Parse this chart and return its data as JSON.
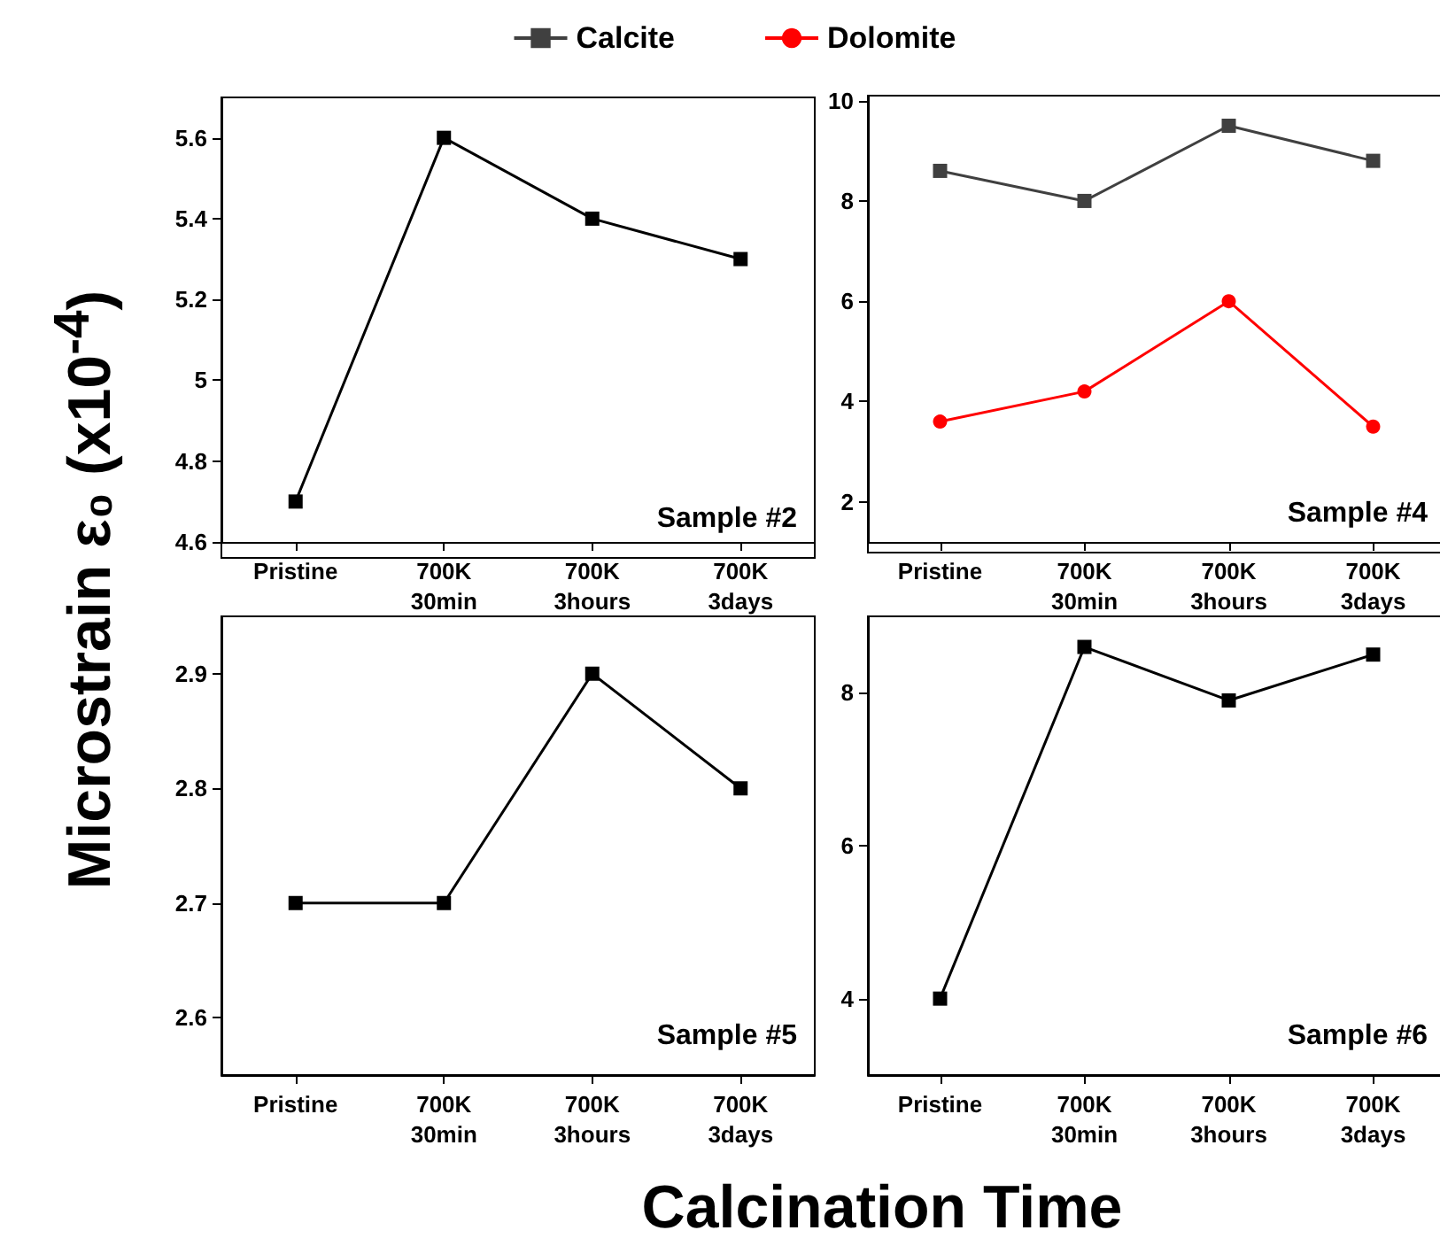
{
  "chart_data": [
    {
      "type": "line",
      "ylabel": "Microstrain ε₀ (x10$^{-4}$)",
      "categories": [
        "Pristine",
        "700K\n30min",
        "700K\n3hours",
        "700K\n3days"
      ],
      "series": [
        {
          "color": "#000000",
          "values": [
            4.7,
            5.6,
            5.4,
            5.3
          ]
        }
      ],
      "ylim": [
        4.6,
        5.7
      ],
      "yticks": [
        4.6,
        4.8,
        5.0,
        5.2,
        5.4,
        5.6
      ],
      "marker": "square",
      "grid": false,
      "annotations": [
        "Sample #2"
      ]
    },
    {
      "type": "line",
      "categories": [
        "Pristine",
        "700K\n30min",
        "700K\n3hours",
        "700K\n3days"
      ],
      "series": [
        {
          "name": "Calcite",
          "color": "#404040",
          "marker": "square",
          "values": [
            8.6,
            8.0,
            9.5,
            8.8
          ]
        },
        {
          "name": "Dolomite",
          "color": "#ff0000",
          "marker": "circle",
          "values": [
            3.6,
            4.2,
            6.0,
            3.5
          ]
        }
      ],
      "ylim": [
        1.2,
        10.1
      ],
      "yticks": [
        2,
        4,
        6,
        8,
        10
      ],
      "grid": false,
      "legend": "top",
      "annotations": [
        "Sample #4"
      ]
    },
    {
      "type": "line",
      "xlabel": "Calcination Time",
      "categories": [
        "Pristine",
        "700K\n30min",
        "700K\n3hours",
        "700K\n3days"
      ],
      "series": [
        {
          "color": "#000000",
          "values": [
            2.7,
            2.7,
            2.9,
            2.8
          ]
        }
      ],
      "ylim": [
        2.55,
        2.95
      ],
      "yticks": [
        2.6,
        2.7,
        2.8,
        2.9
      ],
      "marker": "square",
      "grid": false,
      "annotations": [
        "Sample #5"
      ]
    },
    {
      "type": "line",
      "categories": [
        "Pristine",
        "700K\n30min",
        "700K\n3hours",
        "700K\n3days"
      ],
      "series": [
        {
          "color": "#000000",
          "values": [
            4.0,
            8.6,
            7.9,
            8.5
          ]
        }
      ],
      "ylim": [
        3,
        9
      ],
      "yticks": [
        4,
        6,
        8
      ],
      "marker": "square",
      "grid": false,
      "annotations": [
        "Sample #6"
      ]
    }
  ]
}
